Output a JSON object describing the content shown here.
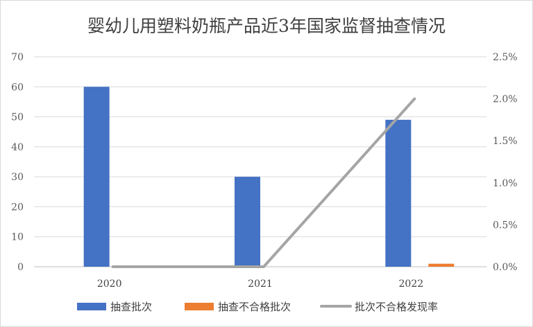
{
  "chart_data": {
    "type": "bar",
    "title": "婴幼儿用塑料奶瓶产品近3年国家监督抽查情况",
    "categories": [
      "2020",
      "2021",
      "2022"
    ],
    "series": [
      {
        "name": "抽查批次",
        "kind": "bar",
        "axis": "left",
        "color": "#4472c4",
        "values": [
          60,
          30,
          49
        ]
      },
      {
        "name": "抽查不合格批次",
        "kind": "bar",
        "axis": "left",
        "color": "#ed7d31",
        "values": [
          0,
          0,
          1
        ]
      },
      {
        "name": "批次不合格发现率",
        "kind": "line",
        "axis": "right",
        "color": "#a5a5a5",
        "values": [
          0,
          0,
          2.0
        ]
      }
    ],
    "y_left": {
      "ylim": [
        0,
        70
      ],
      "ticks": [
        "0",
        "10",
        "20",
        "30",
        "40",
        "50",
        "60",
        "70"
      ]
    },
    "y_right": {
      "ylim": [
        0,
        2.5
      ],
      "ticks": [
        "0.0%",
        "0.5%",
        "1.0%",
        "1.5%",
        "2.0%",
        "2.5%"
      ]
    },
    "gridlines": true,
    "legend_position": "bottom"
  }
}
